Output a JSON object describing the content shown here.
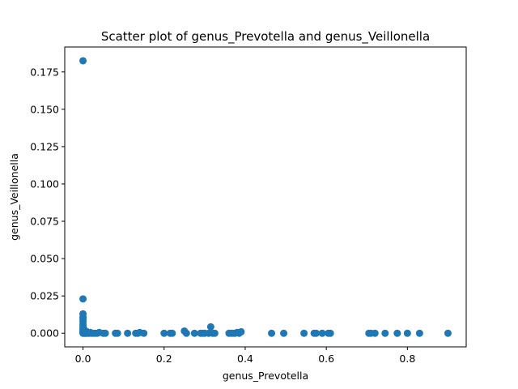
{
  "chart_data": {
    "type": "scatter",
    "title": "Scatter plot of genus_Prevotella and genus_Veillonella",
    "xlabel": "genus_Prevotella",
    "ylabel": "genus_Veillonella",
    "xlim": [
      -0.045,
      0.945
    ],
    "ylim": [
      -0.0091,
      0.1917
    ],
    "xticks": [
      0.0,
      0.2,
      0.4,
      0.6,
      0.8
    ],
    "xtick_labels": [
      "0.0",
      "0.2",
      "0.4",
      "0.6",
      "0.8"
    ],
    "yticks": [
      0.0,
      0.025,
      0.05,
      0.075,
      0.1,
      0.125,
      0.15,
      0.175
    ],
    "ytick_labels": [
      "0.000",
      "0.025",
      "0.050",
      "0.075",
      "0.100",
      "0.125",
      "0.150",
      "0.175"
    ],
    "marker_color": "#1f77b4",
    "grid": false,
    "points": [
      [
        0.0,
        0.1825
      ],
      [
        0.0,
        0.023
      ],
      [
        0.0,
        0.013
      ],
      [
        0.0,
        0.011
      ],
      [
        0.0,
        0.0095
      ],
      [
        0.0,
        0.008
      ],
      [
        0.0,
        0.006
      ],
      [
        0.0,
        0.0045
      ],
      [
        0.0,
        0.003
      ],
      [
        0.0,
        0.002
      ],
      [
        0.0,
        0.001
      ],
      [
        0.0,
        0.0005
      ],
      [
        0.0,
        0.0
      ],
      [
        0.001,
        0.0
      ],
      [
        0.002,
        0.001
      ],
      [
        0.003,
        0.0025
      ],
      [
        0.004,
        0.0
      ],
      [
        0.005,
        0.0015
      ],
      [
        0.006,
        0.0
      ],
      [
        0.007,
        0.0005
      ],
      [
        0.008,
        0.0
      ],
      [
        0.01,
        0.001
      ],
      [
        0.012,
        0.0
      ],
      [
        0.015,
        0.0
      ],
      [
        0.018,
        0.0005
      ],
      [
        0.02,
        0.0
      ],
      [
        0.025,
        0.0
      ],
      [
        0.03,
        0.0
      ],
      [
        0.035,
        0.0
      ],
      [
        0.04,
        0.0005
      ],
      [
        0.05,
        0.0
      ],
      [
        0.055,
        0.0
      ],
      [
        0.08,
        0.0
      ],
      [
        0.085,
        0.0
      ],
      [
        0.11,
        0.0
      ],
      [
        0.13,
        0.0
      ],
      [
        0.135,
        0.0
      ],
      [
        0.14,
        0.0005
      ],
      [
        0.15,
        0.0
      ],
      [
        0.2,
        0.0
      ],
      [
        0.215,
        0.0
      ],
      [
        0.22,
        0.0
      ],
      [
        0.25,
        0.0015
      ],
      [
        0.255,
        0.0
      ],
      [
        0.275,
        0.0
      ],
      [
        0.29,
        0.0
      ],
      [
        0.295,
        0.0
      ],
      [
        0.3,
        0.0
      ],
      [
        0.31,
        0.0
      ],
      [
        0.315,
        0.0043
      ],
      [
        0.32,
        0.0
      ],
      [
        0.325,
        0.0
      ],
      [
        0.36,
        0.0
      ],
      [
        0.365,
        0.0
      ],
      [
        0.37,
        0.0
      ],
      [
        0.375,
        0.0
      ],
      [
        0.38,
        0.0005
      ],
      [
        0.385,
        0.0
      ],
      [
        0.39,
        0.001
      ],
      [
        0.465,
        0.0
      ],
      [
        0.495,
        0.0
      ],
      [
        0.545,
        0.0
      ],
      [
        0.57,
        0.0
      ],
      [
        0.575,
        0.0
      ],
      [
        0.59,
        0.0
      ],
      [
        0.605,
        0.0
      ],
      [
        0.61,
        0.0
      ],
      [
        0.705,
        0.0
      ],
      [
        0.71,
        0.0
      ],
      [
        0.72,
        0.0
      ],
      [
        0.745,
        0.0
      ],
      [
        0.775,
        0.0
      ],
      [
        0.8,
        0.0
      ],
      [
        0.83,
        0.0
      ],
      [
        0.9,
        0.0
      ]
    ]
  }
}
